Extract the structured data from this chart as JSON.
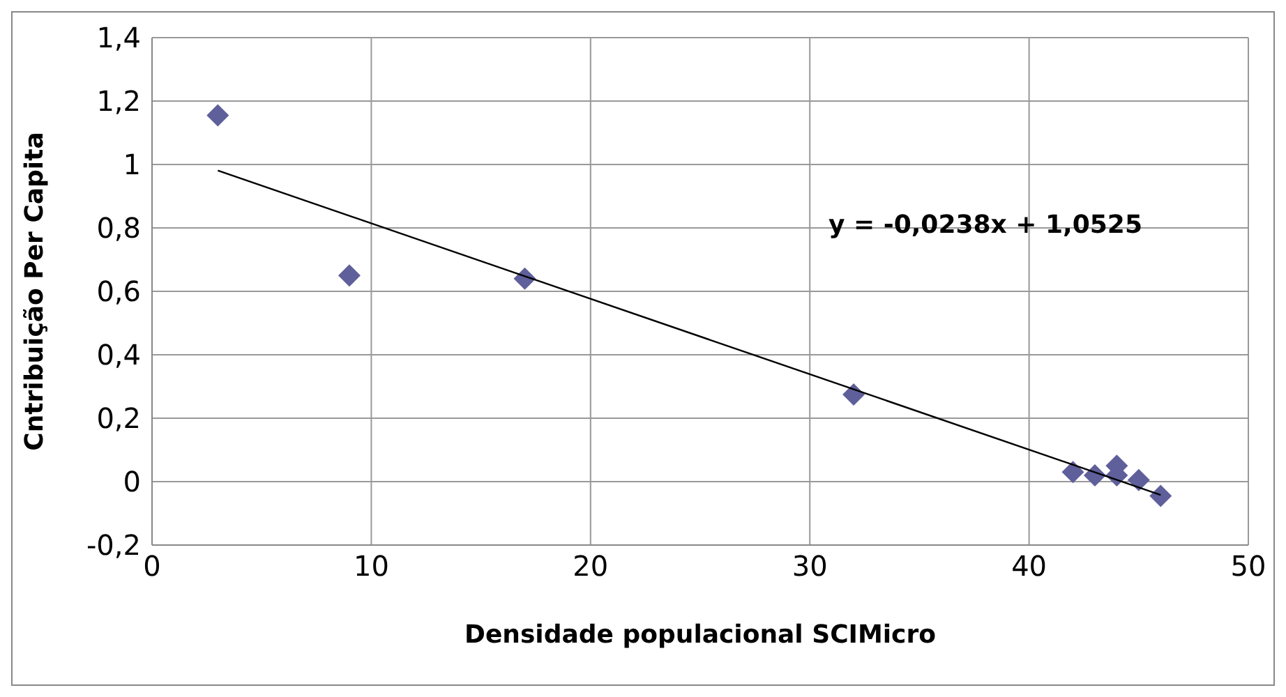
{
  "chart_data": {
    "type": "scatter",
    "xlabel": "Densidade populacional  SCIMicro",
    "ylabel": "Cntribuição Per Capita",
    "annotations": [
      "y = -0,0238x + 1,0525"
    ],
    "series": [
      {
        "color": "#5f5f9b",
        "marker": "diamond",
        "x": [
          3,
          9,
          17,
          32,
          42,
          43,
          44,
          44,
          45,
          46
        ],
        "values": [
          1.155,
          0.65,
          0.64,
          0.275,
          0.03,
          0.02,
          0.05,
          0.02,
          0.005,
          -0.045
        ]
      },
      {
        "type": "line",
        "color": "#000000",
        "marker": "none",
        "x": [
          3,
          46
        ],
        "values": [
          0.981,
          -0.042
        ]
      }
    ],
    "xlim": [
      0,
      50
    ],
    "xticks": [
      0,
      10,
      20,
      30,
      40,
      50
    ],
    "ylim": [
      -0.2,
      1.4
    ],
    "yticks": [
      {
        "value": -0.2,
        "label": "-0,2"
      },
      0,
      {
        "value": 0.2,
        "label": "0,2"
      },
      {
        "value": 0.4,
        "label": "0,4"
      },
      {
        "value": 0.6,
        "label": "0,6"
      },
      {
        "value": 0.8,
        "label": "0,8"
      },
      1,
      {
        "value": 1.2,
        "label": "1,2"
      },
      {
        "value": 1.4,
        "label": "1,4"
      }
    ],
    "grid": true
  }
}
